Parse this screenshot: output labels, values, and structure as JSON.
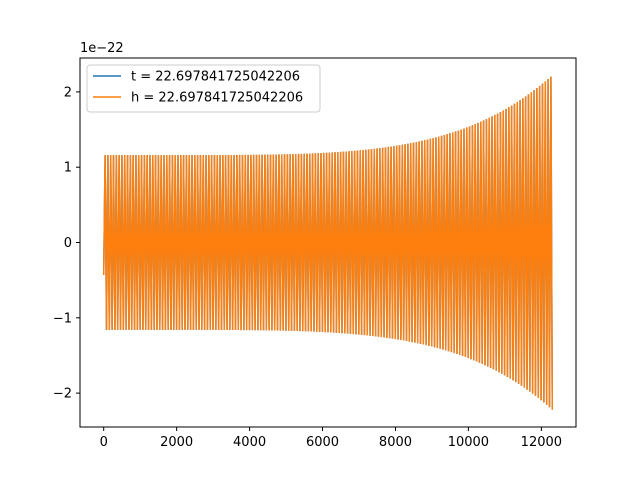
{
  "chart_data": {
    "type": "line",
    "title": "",
    "xlabel": "",
    "ylabel": "",
    "offset_text": "1e−22",
    "xlim": [
      -650,
      12950
    ],
    "ylim": [
      -2.45,
      2.45
    ],
    "x_ticks": [
      0,
      2000,
      4000,
      6000,
      8000,
      10000,
      12000
    ],
    "x_tick_labels": [
      "0",
      "2000",
      "4000",
      "6000",
      "8000",
      "10000",
      "12000"
    ],
    "y_ticks": [
      -2,
      -1,
      0,
      1,
      2
    ],
    "y_tick_labels": [
      "−2",
      "−1",
      "0",
      "1",
      "2"
    ],
    "grid": false,
    "legend_position": "upper-left",
    "series": [
      {
        "name": "t = 22.697841725042206",
        "color": "#1f77b4",
        "signal": {
          "x_start": 0,
          "x_end": 12300,
          "start_value": -0.43,
          "amplitude_start": 1.16,
          "amplitude_end": 2.22,
          "cycles": 160
        }
      },
      {
        "name": "h = 22.697841725042206",
        "color": "#ff7f0e",
        "signal": {
          "x_start": 0,
          "x_end": 12300,
          "start_value": -0.43,
          "amplitude_start": 1.16,
          "amplitude_end": 2.22,
          "cycles": 160
        }
      }
    ]
  }
}
